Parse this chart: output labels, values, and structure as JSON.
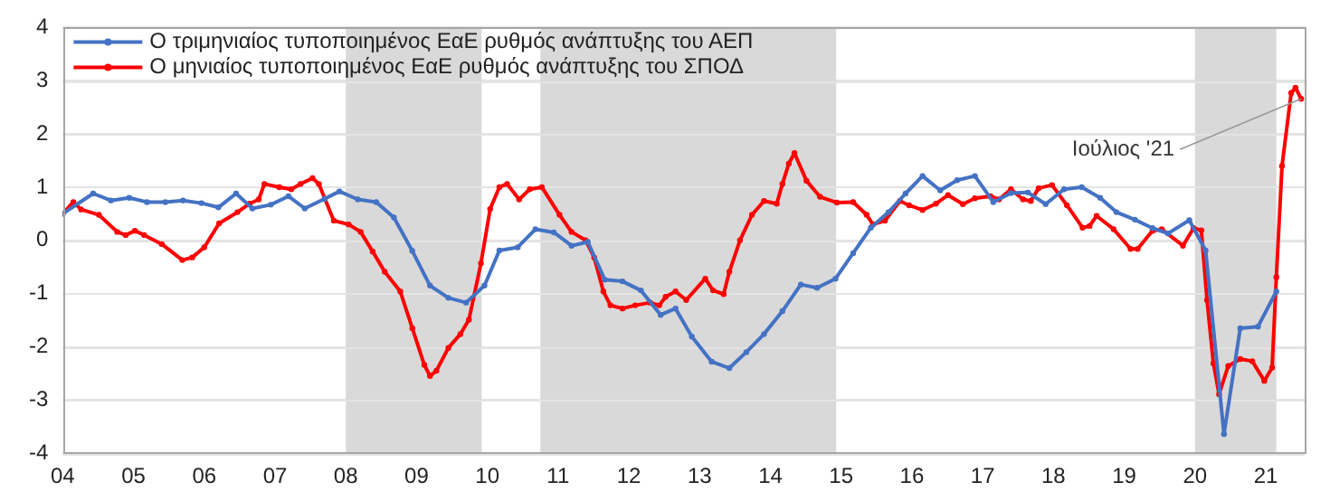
{
  "chart_data": {
    "type": "line",
    "series": [
      {
        "name": "Ο τριμηνιαίος τυποποιημένος ΕαΕ ρυθμός ανάπτυξης του ΑΕΠ",
        "color": "#4472c4",
        "x": [
          2004.0,
          2004.43,
          2004.68,
          2004.94,
          2005.19,
          2005.45,
          2005.7,
          2005.96,
          2006.2,
          2006.45,
          2006.68,
          2006.94,
          2007.19,
          2007.42,
          2007.7,
          2007.91,
          2008.17,
          2008.43,
          2008.68,
          2008.94,
          2009.19,
          2009.45,
          2009.7,
          2009.96,
          2010.17,
          2010.43,
          2010.68,
          2010.94,
          2011.19,
          2011.42,
          2011.66,
          2011.91,
          2012.17,
          2012.45,
          2012.66,
          2012.89,
          2013.17,
          2013.42,
          2013.66,
          2013.91,
          2014.17,
          2014.43,
          2014.66,
          2014.92,
          2015.17,
          2015.42,
          2015.67,
          2015.91,
          2016.15,
          2016.4,
          2016.64,
          2016.89,
          2017.15,
          2017.4,
          2017.64,
          2017.89,
          2018.15,
          2018.4,
          2018.66,
          2018.89,
          2019.15,
          2019.4,
          2019.62,
          2019.92,
          2020.15,
          2020.41,
          2020.64,
          2020.89,
          2021.15
        ],
        "values": [
          0.5,
          0.88,
          0.75,
          0.8,
          0.72,
          0.72,
          0.75,
          0.7,
          0.62,
          0.88,
          0.6,
          0.67,
          0.83,
          0.6,
          0.78,
          0.92,
          0.77,
          0.72,
          0.43,
          -0.2,
          -0.85,
          -1.08,
          -1.17,
          -0.85,
          -0.19,
          -0.13,
          0.21,
          0.15,
          -0.1,
          -0.03,
          -0.74,
          -0.77,
          -0.94,
          -1.4,
          -1.28,
          -1.81,
          -2.28,
          -2.4,
          -2.1,
          -1.76,
          -1.33,
          -0.83,
          -0.89,
          -0.72,
          -0.24,
          0.24,
          0.53,
          0.88,
          1.21,
          0.94,
          1.13,
          1.21,
          0.72,
          0.89,
          0.9,
          0.68,
          0.96,
          1.0,
          0.8,
          0.53,
          0.39,
          0.23,
          0.13,
          0.38,
          -0.19,
          -3.64,
          -1.65,
          -1.62,
          -0.96
        ]
      },
      {
        "name": "Ο μηνιαίος τυποποιημένος ΕαΕ ρυθμός ανάπτυξης του ΣΠΟΔ",
        "color": "#ff0000",
        "x": [
          2004.0,
          2004.15,
          2004.26,
          2004.51,
          2004.77,
          2004.89,
          2005.02,
          2005.15,
          2005.4,
          2005.69,
          2005.83,
          2006.0,
          2006.21,
          2006.47,
          2006.64,
          2006.77,
          2006.85,
          2007.06,
          2007.23,
          2007.36,
          2007.53,
          2007.62,
          2007.83,
          2008.04,
          2008.21,
          2008.38,
          2008.55,
          2008.77,
          2008.94,
          2009.11,
          2009.19,
          2009.28,
          2009.45,
          2009.62,
          2009.74,
          2009.91,
          2010.04,
          2010.17,
          2010.28,
          2010.45,
          2010.6,
          2010.77,
          2011.02,
          2011.19,
          2011.39,
          2011.51,
          2011.64,
          2011.74,
          2011.91,
          2012.09,
          2012.3,
          2012.43,
          2012.52,
          2012.66,
          2012.81,
          2013.08,
          2013.19,
          2013.34,
          2013.42,
          2013.57,
          2013.74,
          2013.91,
          2014.09,
          2014.17,
          2014.26,
          2014.34,
          2014.51,
          2014.7,
          2014.94,
          2015.17,
          2015.36,
          2015.45,
          2015.62,
          2015.83,
          2015.96,
          2016.15,
          2016.34,
          2016.51,
          2016.72,
          2016.89,
          2017.11,
          2017.23,
          2017.4,
          2017.57,
          2017.68,
          2017.79,
          2017.98,
          2018.19,
          2018.41,
          2018.51,
          2018.61,
          2018.85,
          2019.09,
          2019.19,
          2019.4,
          2019.53,
          2019.83,
          2019.98,
          2020.09,
          2020.17,
          2020.26,
          2020.34,
          2020.47,
          2020.64,
          2020.81,
          2020.98,
          2021.09,
          2021.15,
          2021.23,
          2021.36,
          2021.42,
          2021.5
        ],
        "values": [
          0.5,
          0.72,
          0.58,
          0.48,
          0.16,
          0.1,
          0.18,
          0.1,
          -0.07,
          -0.37,
          -0.32,
          -0.13,
          0.32,
          0.53,
          0.69,
          0.77,
          1.06,
          1.0,
          0.96,
          1.06,
          1.17,
          1.06,
          0.37,
          0.3,
          0.16,
          -0.21,
          -0.59,
          -0.96,
          -1.65,
          -2.34,
          -2.55,
          -2.45,
          -2.02,
          -1.76,
          -1.49,
          -0.43,
          0.59,
          1.0,
          1.06,
          0.77,
          0.96,
          1.0,
          0.48,
          0.16,
          0.0,
          -0.32,
          -0.96,
          -1.22,
          -1.28,
          -1.22,
          -1.17,
          -1.22,
          -1.06,
          -0.96,
          -1.12,
          -0.72,
          -0.94,
          -1.01,
          -0.59,
          0.0,
          0.48,
          0.74,
          0.69,
          1.06,
          1.44,
          1.64,
          1.12,
          0.82,
          0.71,
          0.72,
          0.48,
          0.3,
          0.37,
          0.74,
          0.66,
          0.57,
          0.69,
          0.85,
          0.68,
          0.79,
          0.83,
          0.77,
          0.96,
          0.77,
          0.74,
          0.98,
          1.04,
          0.66,
          0.24,
          0.27,
          0.46,
          0.21,
          -0.16,
          -0.16,
          0.18,
          0.21,
          -0.1,
          0.23,
          0.19,
          -1.12,
          -2.31,
          -2.89,
          -2.36,
          -2.23,
          -2.27,
          -2.64,
          -2.39,
          -0.69,
          1.4,
          2.77,
          2.87,
          2.66
        ]
      }
    ],
    "xlim": [
      2004,
      2021.55
    ],
    "xticks": [
      {
        "value": 2004,
        "label": "04"
      },
      {
        "value": 2005,
        "label": "05"
      },
      {
        "value": 2006,
        "label": "06"
      },
      {
        "value": 2007,
        "label": "07"
      },
      {
        "value": 2008,
        "label": "08"
      },
      {
        "value": 2009,
        "label": "09"
      },
      {
        "value": 2010,
        "label": "10"
      },
      {
        "value": 2011,
        "label": "11"
      },
      {
        "value": 2012,
        "label": "12"
      },
      {
        "value": 2013,
        "label": "13"
      },
      {
        "value": 2014,
        "label": "14"
      },
      {
        "value": 2015,
        "label": "15"
      },
      {
        "value": 2016,
        "label": "16"
      },
      {
        "value": 2017,
        "label": "17"
      },
      {
        "value": 2018,
        "label": "18"
      },
      {
        "value": 2019,
        "label": "19"
      },
      {
        "value": 2020,
        "label": "20"
      },
      {
        "value": 2021,
        "label": "21"
      }
    ],
    "ylim": [
      -4,
      4
    ],
    "yticks": [
      -4,
      -3,
      -2,
      -1,
      0,
      1,
      2,
      3,
      4
    ],
    "bands": [
      {
        "axis": "x",
        "from": 2008,
        "to": 2009.92,
        "color": "#d9d9d9"
      },
      {
        "axis": "x",
        "from": 2010.75,
        "to": 2014.93,
        "color": "#d9d9d9"
      },
      {
        "axis": "x",
        "from": 2020,
        "to": 2021.15,
        "color": "#d9d9d9"
      }
    ],
    "annotations": [
      {
        "text": "Ιούλιος '21",
        "x": 2021.5,
        "y": 2.66
      }
    ],
    "grid": "y",
    "legend": "top left",
    "marker": "circle",
    "line_style": "solid"
  }
}
